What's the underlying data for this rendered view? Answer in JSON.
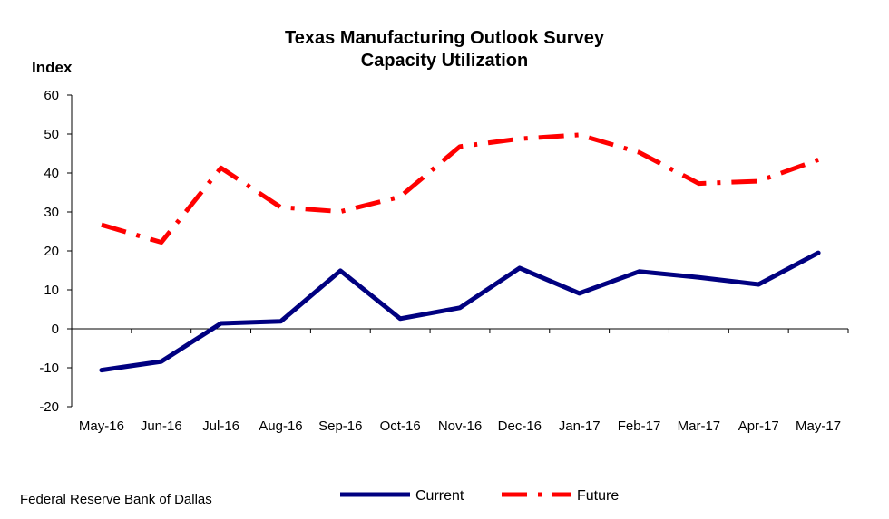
{
  "chart_data": {
    "type": "line",
    "title": "Texas Manufacturing Outlook Survey",
    "subtitle": "Capacity Utilization",
    "ylabel": "Index",
    "xlabel": "",
    "ylim": [
      -20,
      60
    ],
    "yticks": [
      -20,
      -10,
      0,
      10,
      20,
      30,
      40,
      50,
      60
    ],
    "categories": [
      "May-16",
      "Jun-16",
      "Jul-16",
      "Aug-16",
      "Sep-16",
      "Oct-16",
      "Nov-16",
      "Dec-16",
      "Jan-17",
      "Feb-17",
      "Mar-17",
      "Apr-17",
      "May-17"
    ],
    "series": [
      {
        "name": "Current",
        "color": "#000080",
        "style": "solid",
        "values": [
          -10.6,
          -8.4,
          1.4,
          1.9,
          14.9,
          2.6,
          5.4,
          15.6,
          9.1,
          14.7,
          13.2,
          11.4,
          19.5
        ]
      },
      {
        "name": "Future",
        "color": "#ff0000",
        "style": "dash-dot",
        "values": [
          26.7,
          22.2,
          41.3,
          31.2,
          30.1,
          33.9,
          46.8,
          48.8,
          49.8,
          45.3,
          37.3,
          37.9,
          43.4
        ]
      }
    ],
    "grid": false,
    "legend_position": "bottom-center"
  },
  "footer": {
    "source": "Federal Reserve Bank of Dallas"
  }
}
